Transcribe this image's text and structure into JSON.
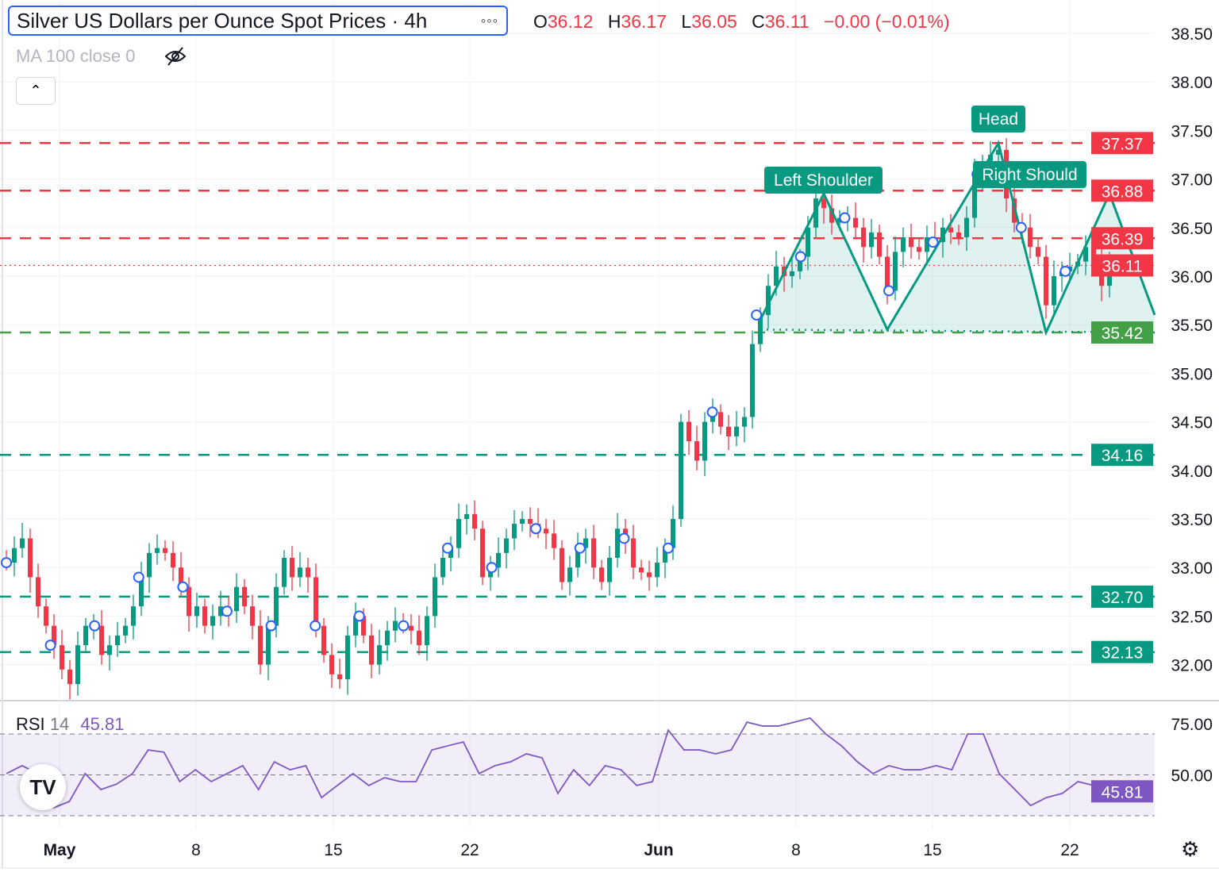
{
  "header": {
    "title": "Silver US Dollars per Ounce Spot Prices · 4h",
    "more_icon": "ellipsis-icon",
    "ohlc": {
      "o_label": "O",
      "o": "36.12",
      "h_label": "H",
      "h": "36.17",
      "l_label": "L",
      "l": "36.05",
      "c_label": "C",
      "c": "36.11",
      "change": "−0.00 (−0.01%)"
    },
    "ma_label": "MA 100 close 0",
    "ma_icon": "eye-off-icon",
    "collapse_icon": "chevron-up-icon"
  },
  "rsi_legend": {
    "name": "RSI",
    "period": "14",
    "value": "45.81"
  },
  "colors": {
    "up": "#089981",
    "down": "#f23645",
    "resistance": "#f23645",
    "support": "#089981",
    "neckline_label": "#43a047",
    "rsi": "#7e57c2",
    "marker": "#2962ff",
    "pattern": "#089981"
  },
  "chart_data": [
    {
      "type": "candlestick",
      "title": "Silver US Dollars per Ounce Spot Prices · 4h",
      "x_tick_labels": [
        "May",
        "8",
        "15",
        "22",
        "Jun",
        "8",
        "15",
        "22"
      ],
      "y_tick_labels": [
        "38.50",
        "38.00",
        "37.50",
        "37.00",
        "36.50",
        "36.00",
        "35.50",
        "35.00",
        "34.50",
        "34.00",
        "33.50",
        "33.00",
        "32.50",
        "32.00"
      ],
      "ylim": [
        31.6,
        38.7
      ],
      "grid": true,
      "closes": [
        33.05,
        33.2,
        33.3,
        32.9,
        32.6,
        32.4,
        32.2,
        31.95,
        31.8,
        32.2,
        32.4,
        32.4,
        32.1,
        32.2,
        32.3,
        32.4,
        32.6,
        32.9,
        33.15,
        33.2,
        33.15,
        33.0,
        32.8,
        32.5,
        32.6,
        32.4,
        32.5,
        32.6,
        32.55,
        32.8,
        32.6,
        32.4,
        32.0,
        32.4,
        32.8,
        33.1,
        32.9,
        33.0,
        32.9,
        32.4,
        32.1,
        31.9,
        31.85,
        32.3,
        32.5,
        32.3,
        32.0,
        32.2,
        32.35,
        32.45,
        32.4,
        32.35,
        32.2,
        32.5,
        32.9,
        33.1,
        33.2,
        33.5,
        33.55,
        33.4,
        32.9,
        33.0,
        33.15,
        33.3,
        33.45,
        33.5,
        33.45,
        33.4,
        33.35,
        33.2,
        32.85,
        33.0,
        33.2,
        33.3,
        33.0,
        32.85,
        33.1,
        33.4,
        33.3,
        33.0,
        32.95,
        32.9,
        33.05,
        33.2,
        33.5,
        34.5,
        34.3,
        34.1,
        34.5,
        34.6,
        34.45,
        34.35,
        34.45,
        34.55,
        35.3,
        35.6,
        35.9,
        36.1,
        36.0,
        36.05,
        36.2,
        36.5,
        36.8,
        36.7,
        36.55,
        36.6,
        36.6,
        36.5,
        36.3,
        36.45,
        36.2,
        35.85,
        36.25,
        36.4,
        36.3,
        36.25,
        36.4,
        36.35,
        36.5,
        36.45,
        36.4,
        36.6,
        37.05,
        37.15,
        37.25,
        37.3,
        36.8,
        36.55,
        36.5,
        36.3,
        36.2,
        35.7,
        36.0,
        36.05,
        36.1,
        36.15,
        36.3,
        36.2,
        35.9,
        36.11
      ],
      "horizontal_levels": [
        {
          "price": "37.37",
          "role": "resistance",
          "style": "dashed"
        },
        {
          "price": "36.88",
          "role": "resistance",
          "style": "dashed"
        },
        {
          "price": "36.39",
          "role": "resistance",
          "style": "dashed"
        },
        {
          "price": "36.11",
          "role": "last-price",
          "style": "dotted"
        },
        {
          "price": "35.42",
          "role": "neckline",
          "style": "dashed"
        },
        {
          "price": "34.16",
          "role": "support",
          "style": "dashed"
        },
        {
          "price": "32.70",
          "role": "support",
          "style": "dashed"
        },
        {
          "price": "32.13",
          "role": "support",
          "style": "dashed"
        }
      ],
      "pattern": {
        "name": "head-and-shoulders",
        "points_price": [
          35.55,
          36.85,
          35.45,
          37.37,
          35.42,
          36.85,
          35.6
        ],
        "labels": {
          "left": "Left Shoulder",
          "head": "Head",
          "right": "Right Should"
        }
      }
    },
    {
      "type": "line",
      "title": "RSI 14",
      "y_tick_labels": [
        "75.00",
        "50.00"
      ],
      "ylim": [
        20,
        80
      ],
      "bands": [
        70,
        50,
        30
      ],
      "values": [
        50.6,
        54.5,
        50.6,
        33.9,
        37,
        50.6,
        42.8,
        45.5,
        50.6,
        62.2,
        61.1,
        46.7,
        52.5,
        46.7,
        50.6,
        54.5,
        42.8,
        56.4,
        52.5,
        54.5,
        38.9,
        44.8,
        50.6,
        44.8,
        48.6,
        46.7,
        46.7,
        62.2,
        64.2,
        66.1,
        50.6,
        54.5,
        56.4,
        60.3,
        58.3,
        40.9,
        52.5,
        44.8,
        54.5,
        52.5,
        44.8,
        46.7,
        71.9,
        62.2,
        62.2,
        60.3,
        62.2,
        75.8,
        73.9,
        73.9,
        75.8,
        77.8,
        70,
        64.2,
        56.4,
        50.6,
        54.5,
        52.5,
        52.5,
        54.5,
        52.5,
        70,
        70,
        50.6,
        42.8,
        35,
        38.9,
        40.9,
        46.7,
        44.8,
        45.81
      ],
      "last_value_label": "45.81"
    }
  ],
  "footer": {
    "logo": "TV",
    "settings_icon": "settings-icon"
  }
}
